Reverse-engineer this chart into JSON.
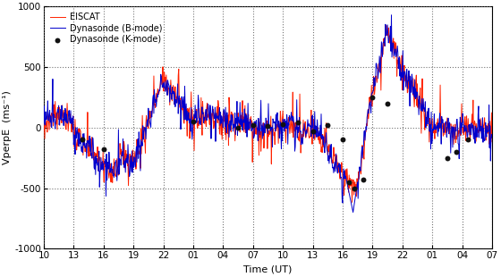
{
  "xlabel": "Time (UT)",
  "ylabel": "VperpE  (ms⁻¹)",
  "ylim": [
    -1000,
    1000
  ],
  "yticks": [
    -1000,
    -500,
    0,
    500,
    1000
  ],
  "xtick_labels": [
    "10",
    "13",
    "16",
    "19",
    "22",
    "01",
    "04",
    "07",
    "10",
    "13",
    "16",
    "19",
    "22",
    "01",
    "04",
    "07"
  ],
  "eiscat_color": "#ff2200",
  "dynasonde_b_color": "#0000cc",
  "dynasonde_k_color": "#111111",
  "background_color": "#ffffff",
  "grid_color": "#888888",
  "legend_items": [
    "EISCAT",
    "Dynasonde (B-mode)",
    "Dynasonde (K-mode)"
  ]
}
